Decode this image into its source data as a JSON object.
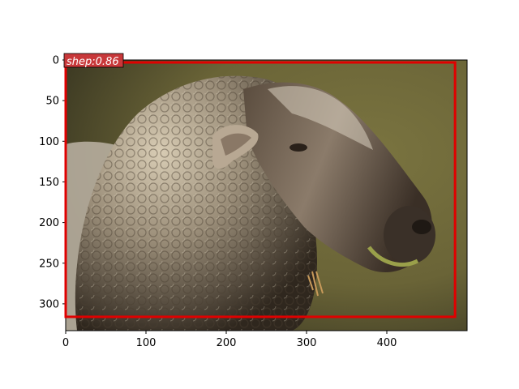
{
  "image": {
    "subject": "sheep-photo",
    "colors": {
      "background_grass": "#6f6a3a",
      "wool_light": "#c9bba3",
      "wool_shadow": "#3b3024",
      "face": "#6a5c4e",
      "muzzle": "#2e2620"
    }
  },
  "axes": {
    "xlim": [
      0,
      500
    ],
    "ylim": [
      333,
      0
    ],
    "x_ticks": [
      0,
      100,
      200,
      300,
      400
    ],
    "y_ticks": [
      0,
      50,
      100,
      150,
      200,
      250,
      300
    ]
  },
  "detections": [
    {
      "label_text": "shep:0.86",
      "box_color": "#e00000",
      "label_bg": "#c8383a",
      "box": {
        "x0": 0,
        "y0": 3,
        "x1": 485,
        "y1": 316
      }
    }
  ]
}
